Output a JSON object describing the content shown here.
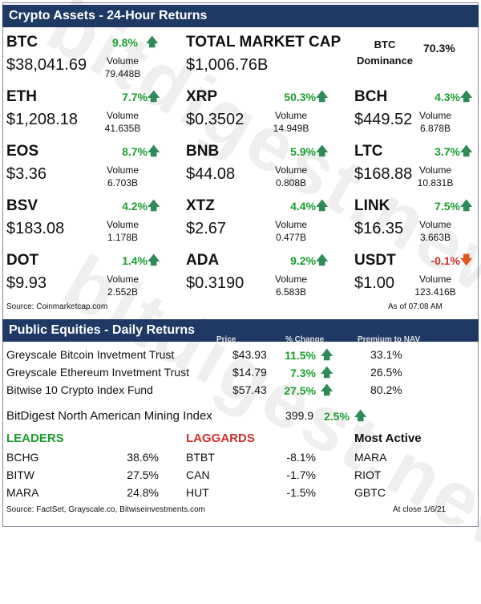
{
  "crypto": {
    "header": "Crypto Assets - 24-Hour Returns",
    "btc": {
      "symbol": "BTC",
      "price": "$38,041.69",
      "pct": "9.8%",
      "vol_label": "Volume",
      "vol": "79.448B"
    },
    "total": {
      "label": "TOTAL MARKET CAP",
      "value": "$1,006.76B"
    },
    "dominance": {
      "label1": "BTC",
      "label2": "Dominance",
      "value": "70.3%"
    },
    "assets": [
      {
        "symbol": "ETH",
        "price": "$1,208.18",
        "pct": "7.7%",
        "vol": "41.635B",
        "direction": "up"
      },
      {
        "symbol": "XRP",
        "price": "$0.3502",
        "pct": "50.3%",
        "vol": "14.949B",
        "direction": "up"
      },
      {
        "symbol": "BCH",
        "price": "$449.52",
        "pct": "4.3%",
        "vol": "6.878B",
        "direction": "up"
      },
      {
        "symbol": "EOS",
        "price": "$3.36",
        "pct": "8.7%",
        "vol": "6.703B",
        "direction": "up"
      },
      {
        "symbol": "BNB",
        "price": "$44.08",
        "pct": "5.9%",
        "vol": "0.808B",
        "direction": "up"
      },
      {
        "symbol": "LTC",
        "price": "$168.88",
        "pct": "3.7%",
        "vol": "10.831B",
        "direction": "up"
      },
      {
        "symbol": "BSV",
        "price": "$183.08",
        "pct": "4.2%",
        "vol": "1.178B",
        "direction": "up"
      },
      {
        "symbol": "XTZ",
        "price": "$2.67",
        "pct": "4.4%",
        "vol": "0.477B",
        "direction": "up"
      },
      {
        "symbol": "LINK",
        "price": "$16.35",
        "pct": "7.5%",
        "vol": "3.663B",
        "direction": "up"
      },
      {
        "symbol": "DOT",
        "price": "$9.93",
        "pct": "1.4%",
        "vol": "2.552B",
        "direction": "up"
      },
      {
        "symbol": "ADA",
        "price": "$0.3190",
        "pct": "9.2%",
        "vol": "6.583B",
        "direction": "up"
      },
      {
        "symbol": "USDT",
        "price": "$1.00",
        "pct": "-0.1%",
        "vol": "123.416B",
        "direction": "down"
      }
    ],
    "vol_label": "Volume",
    "source": "Source: Coinmarketcap.com",
    "asof": "As of 07:08 AM"
  },
  "equities": {
    "header": "Public Equities - Daily Returns",
    "col_price": "Price",
    "col_change": "% Change",
    "col_premium": "Premium to NAV",
    "rows": [
      {
        "name": "Greyscale Bitcoin Invetment Trust",
        "price": "$43.93",
        "change": "11.5%",
        "premium": "33.1%"
      },
      {
        "name": "Greyscale Ethereum Invetment Trust",
        "price": "$14.79",
        "change": "7.3%",
        "premium": "26.5%"
      },
      {
        "name": "Bitwise 10 Crypto Index Fund",
        "price": "$57.43",
        "change": "27.5%",
        "premium": "80.2%"
      }
    ],
    "index": {
      "name": "BitDigest North American Mining Index",
      "value": "399.9",
      "change": "2.5%"
    },
    "leaders_title": "LEADERS",
    "laggards_title": "LAGGARDS",
    "active_title": "Most Active",
    "leaders": [
      {
        "ticker": "BCHG",
        "pct": "38.6%"
      },
      {
        "ticker": "BITW",
        "pct": "27.5%"
      },
      {
        "ticker": "MARA",
        "pct": "24.8%"
      }
    ],
    "laggards": [
      {
        "ticker": "BTBT",
        "pct": "-8.1%"
      },
      {
        "ticker": "CAN",
        "pct": "-1.7%"
      },
      {
        "ticker": "HUT",
        "pct": "-1.5%"
      }
    ],
    "active": [
      "MARA",
      "RIOT",
      "GBTC"
    ],
    "source": "Source: FactSet, Grayscale.co, Bitwiseinvestments.com",
    "asof": "At close 1/6/21"
  },
  "watermark": "bitdigest.news",
  "colors": {
    "header_bg": "#1f3864",
    "up": "#1a9e2a",
    "down": "#d0312d"
  },
  "icons": {
    "up": "up-arrow-icon",
    "down": "down-arrow-icon"
  }
}
